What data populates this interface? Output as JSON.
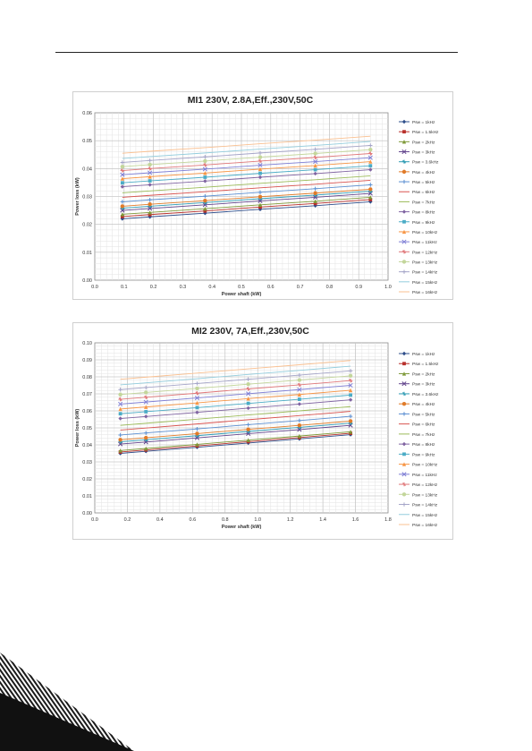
{
  "chart_data": [
    {
      "type": "line",
      "title": "MI1 230V, 2.8A,Eff.,230V,50C",
      "xlabel": "Power shaft (kW)",
      "ylabel": "Power loss (kW)",
      "xlim": [
        0.0,
        1.0
      ],
      "ylim": [
        0.0,
        0.06
      ],
      "xticks": [
        "0.0",
        "0.1",
        "0.2",
        "0.3",
        "0.4",
        "0.5",
        "0.6",
        "0.7",
        "0.8",
        "0.9",
        "1.0"
      ],
      "yticks": [
        "0.00",
        "0.01",
        "0.02",
        "0.03",
        "0.04",
        "0.05",
        "0.06"
      ],
      "grid": true,
      "legend_position": "right",
      "x": [
        0.094,
        0.188,
        0.376,
        0.564,
        0.752,
        0.94
      ],
      "series": [
        {
          "name": "Psw = 1kHz",
          "color": "#2e4d8a",
          "values": [
            0.022,
            0.0227,
            0.024,
            0.0254,
            0.0267,
            0.0281
          ]
        },
        {
          "name": "Psw = 1.5kHz",
          "color": "#b8302b",
          "values": [
            0.0228,
            0.0235,
            0.0248,
            0.0262,
            0.0275,
            0.0289
          ]
        },
        {
          "name": "Psw = 2kHz",
          "color": "#7f9a3a",
          "values": [
            0.0236,
            0.0243,
            0.0256,
            0.027,
            0.0283,
            0.0297
          ]
        },
        {
          "name": "Psw = 3kHz",
          "color": "#62448c",
          "values": [
            0.025,
            0.0257,
            0.027,
            0.0284,
            0.0297,
            0.0311
          ]
        },
        {
          "name": "Psw = 3.6kHz",
          "color": "#2f9bb3",
          "values": [
            0.0258,
            0.0265,
            0.0278,
            0.0292,
            0.0305,
            0.0319
          ]
        },
        {
          "name": "Psw = 4kHz",
          "color": "#e07b29",
          "values": [
            0.0265,
            0.0272,
            0.0285,
            0.0299,
            0.0312,
            0.0326
          ]
        },
        {
          "name": "Psw = 5kHz",
          "color": "#5b8fd1",
          "values": [
            0.0281,
            0.0288,
            0.0301,
            0.0315,
            0.0328,
            0.0342
          ]
        },
        {
          "name": "Psw = 6kHz",
          "color": "#d9534f",
          "values": [
            0.0297,
            0.0304,
            0.0317,
            0.0331,
            0.0344,
            0.0358
          ]
        },
        {
          "name": "Psw = 7kHz",
          "color": "#9bbb59",
          "values": [
            0.0313,
            0.032,
            0.0333,
            0.0347,
            0.036,
            0.0374
          ]
        },
        {
          "name": "Psw = 8kHz",
          "color": "#8064a2",
          "values": [
            0.0335,
            0.0342,
            0.0355,
            0.0369,
            0.0382,
            0.0396
          ]
        },
        {
          "name": "Psw = 9kHz",
          "color": "#4bacc6",
          "values": [
            0.0349,
            0.0356,
            0.0369,
            0.0383,
            0.0396,
            0.041
          ]
        },
        {
          "name": "Psw = 10kHz",
          "color": "#f79646",
          "values": [
            0.0364,
            0.0371,
            0.0384,
            0.0398,
            0.0411,
            0.0425
          ]
        },
        {
          "name": "Psw = 11kHz",
          "color": "#7f7fd5",
          "values": [
            0.0378,
            0.0385,
            0.0398,
            0.0412,
            0.0425,
            0.0439
          ]
        },
        {
          "name": "Psw = 12kHz",
          "color": "#e0787a",
          "values": [
            0.0393,
            0.04,
            0.0413,
            0.0427,
            0.044,
            0.0454
          ]
        },
        {
          "name": "Psw = 13kHz",
          "color": "#c3d69b",
          "values": [
            0.0407,
            0.0414,
            0.0427,
            0.0441,
            0.0454,
            0.0468
          ]
        },
        {
          "name": "Psw = 14kHz",
          "color": "#a5a5c8",
          "values": [
            0.0422,
            0.0429,
            0.0442,
            0.0456,
            0.0469,
            0.0483
          ]
        },
        {
          "name": "Psw = 15kHz",
          "color": "#93cddd",
          "values": [
            0.0436,
            0.0443,
            0.0456,
            0.047,
            0.0483,
            0.0497
          ]
        },
        {
          "name": "Psw = 16kHz",
          "color": "#fac090",
          "values": [
            0.0455,
            0.0462,
            0.0475,
            0.0489,
            0.0502,
            0.0516
          ]
        }
      ]
    },
    {
      "type": "line",
      "title": "MI2 230V, 7A,Eff.,230V,50C",
      "xlabel": "Power shaft (kW)",
      "ylabel": "Power loss (kW)",
      "xlim": [
        0.0,
        1.8
      ],
      "ylim": [
        0.0,
        0.1
      ],
      "xticks": [
        "0.0",
        "0.2",
        "0.4",
        "0.6",
        "0.8",
        "1.0",
        "1.2",
        "1.4",
        "1.6",
        "1.8"
      ],
      "yticks": [
        "0.00",
        "0.01",
        "0.02",
        "0.03",
        "0.04",
        "0.05",
        "0.06",
        "0.07",
        "0.08",
        "0.09",
        "0.10"
      ],
      "grid": true,
      "legend_position": "right",
      "x": [
        0.157,
        0.314,
        0.628,
        0.942,
        1.256,
        1.57
      ],
      "series": [
        {
          "name": "Psw = 1kHz",
          "color": "#2e4d8a",
          "values": [
            0.035,
            0.0362,
            0.0386,
            0.0411,
            0.0435,
            0.046
          ]
        },
        {
          "name": "Psw = 1.5kHz",
          "color": "#b8302b",
          "values": [
            0.0358,
            0.037,
            0.0394,
            0.0419,
            0.0443,
            0.0468
          ]
        },
        {
          "name": "Psw = 2kHz",
          "color": "#7f9a3a",
          "values": [
            0.0367,
            0.0379,
            0.0403,
            0.0428,
            0.0452,
            0.0477
          ]
        },
        {
          "name": "Psw = 3kHz",
          "color": "#62448c",
          "values": [
            0.0405,
            0.0417,
            0.0441,
            0.0466,
            0.049,
            0.0515
          ]
        },
        {
          "name": "Psw = 3.6kHz",
          "color": "#2f9bb3",
          "values": [
            0.0418,
            0.043,
            0.0454,
            0.0479,
            0.0503,
            0.0528
          ]
        },
        {
          "name": "Psw = 4kHz",
          "color": "#e07b29",
          "values": [
            0.043,
            0.0442,
            0.0466,
            0.0491,
            0.0515,
            0.054
          ]
        },
        {
          "name": "Psw = 5kHz",
          "color": "#5b8fd1",
          "values": [
            0.0458,
            0.047,
            0.0494,
            0.0519,
            0.0543,
            0.0568
          ]
        },
        {
          "name": "Psw = 6kHz",
          "color": "#d9534f",
          "values": [
            0.0487,
            0.0499,
            0.0523,
            0.0548,
            0.0572,
            0.0597
          ]
        },
        {
          "name": "Psw = 7kHz",
          "color": "#9bbb59",
          "values": [
            0.0515,
            0.0527,
            0.0551,
            0.0576,
            0.06,
            0.0625
          ]
        },
        {
          "name": "Psw = 8kHz",
          "color": "#8064a2",
          "values": [
            0.0555,
            0.0567,
            0.0591,
            0.0616,
            0.064,
            0.0665
          ]
        },
        {
          "name": "Psw = 9kHz",
          "color": "#4bacc6",
          "values": [
            0.0583,
            0.0595,
            0.0619,
            0.0644,
            0.0668,
            0.0693
          ]
        },
        {
          "name": "Psw = 10kHz",
          "color": "#f79646",
          "values": [
            0.0611,
            0.0623,
            0.0647,
            0.0672,
            0.0696,
            0.0721
          ]
        },
        {
          "name": "Psw = 11kHz",
          "color": "#7f7fd5",
          "values": [
            0.064,
            0.0652,
            0.0676,
            0.0701,
            0.0725,
            0.075
          ]
        },
        {
          "name": "Psw = 12kHz",
          "color": "#e0787a",
          "values": [
            0.0668,
            0.068,
            0.0704,
            0.0729,
            0.0753,
            0.0778
          ]
        },
        {
          "name": "Psw = 13kHz",
          "color": "#c3d69b",
          "values": [
            0.0696,
            0.0708,
            0.0732,
            0.0757,
            0.0781,
            0.0806
          ]
        },
        {
          "name": "Psw = 14kHz",
          "color": "#a5a5c8",
          "values": [
            0.0725,
            0.0737,
            0.0761,
            0.0786,
            0.081,
            0.0835
          ]
        },
        {
          "name": "Psw = 15kHz",
          "color": "#93cddd",
          "values": [
            0.0753,
            0.0765,
            0.0789,
            0.0814,
            0.0838,
            0.0863
          ]
        },
        {
          "name": "Psw = 16kHz",
          "color": "#fac090",
          "values": [
            0.0786,
            0.0798,
            0.0822,
            0.0847,
            0.0871,
            0.0896
          ]
        }
      ]
    }
  ]
}
